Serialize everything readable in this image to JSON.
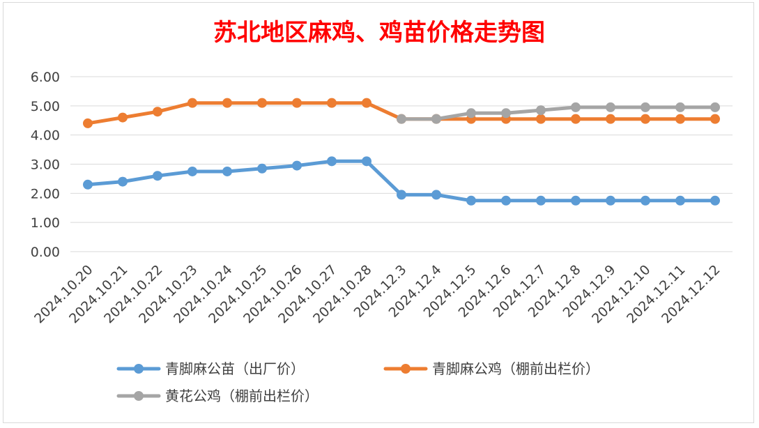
{
  "chart_data": {
    "type": "line",
    "title": "苏北地区麻鸡、鸡苗价格走势图",
    "xlabel": "",
    "ylabel": "",
    "ylim": [
      0,
      6
    ],
    "yticks": [
      "0.00",
      "1.00",
      "2.00",
      "3.00",
      "4.00",
      "5.00",
      "6.00"
    ],
    "grid": true,
    "legend_position": "bottom",
    "categories": [
      "2024.10.20",
      "2024.10.21",
      "2024.10.22",
      "2024.10.23",
      "2024.10.24",
      "2024.10.25",
      "2024.10.26",
      "2024.10.27",
      "2024.10.28",
      "2024.12.3",
      "2024.12.4",
      "2024.12.5",
      "2024.12.6",
      "2024.12.7",
      "2024.12.8",
      "2024.12.9",
      "2024.12.10",
      "2024.12.11",
      "2024.12.12"
    ],
    "series": [
      {
        "name": "青脚麻公苗（出厂价）",
        "color": "#5b9bd5",
        "values": [
          2.3,
          2.4,
          2.6,
          2.75,
          2.75,
          2.85,
          2.95,
          3.1,
          3.1,
          1.95,
          1.95,
          1.75,
          1.75,
          1.75,
          1.75,
          1.75,
          1.75,
          1.75,
          1.75
        ]
      },
      {
        "name": "青脚麻公鸡（棚前出栏价）",
        "color": "#ed7d31",
        "values": [
          4.4,
          4.6,
          4.8,
          5.1,
          5.1,
          5.1,
          5.1,
          5.1,
          5.1,
          4.55,
          4.55,
          4.55,
          4.55,
          4.55,
          4.55,
          4.55,
          4.55,
          4.55,
          4.55
        ]
      },
      {
        "name": "黄花公鸡（棚前出栏价）",
        "color": "#a5a5a5",
        "values": [
          null,
          null,
          null,
          null,
          null,
          null,
          null,
          null,
          null,
          4.55,
          4.55,
          4.75,
          4.75,
          4.85,
          4.95,
          4.95,
          4.95,
          4.95,
          4.95
        ]
      }
    ]
  }
}
